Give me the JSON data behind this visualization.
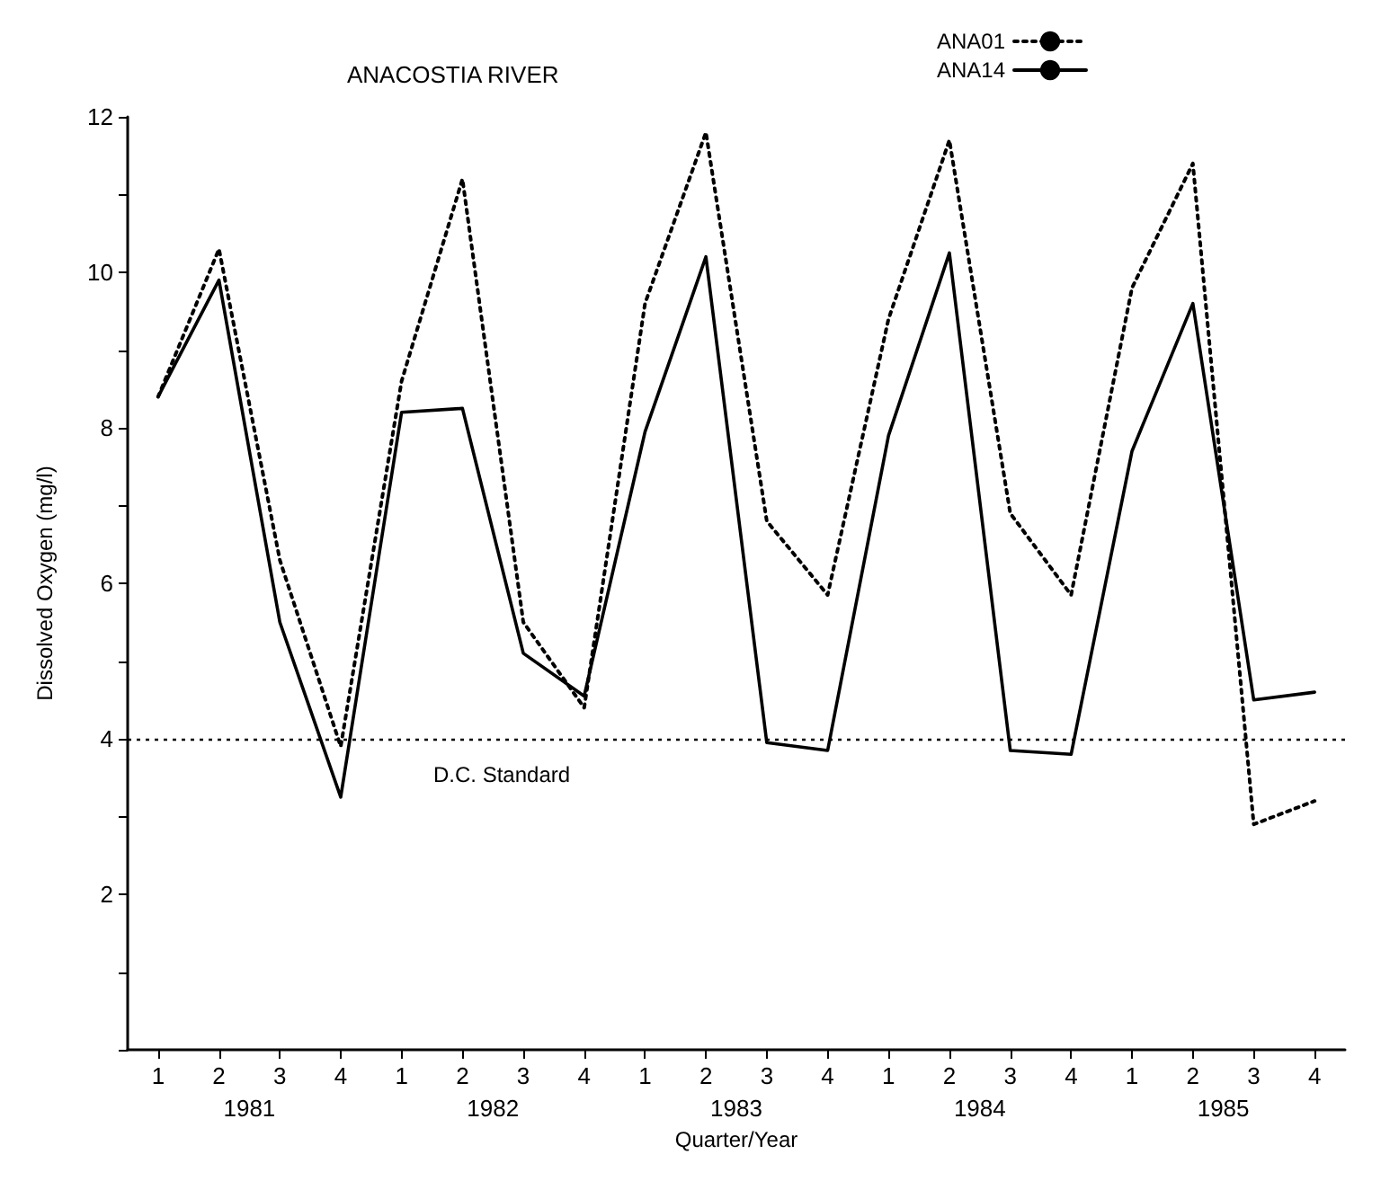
{
  "chart_data": {
    "type": "line",
    "title": "ANACOSTIA RIVER",
    "xlabel": "Quarter/Year",
    "ylabel": "Dissolved Oxygen (mg/l)",
    "categories": [
      "1",
      "2",
      "3",
      "4",
      "1",
      "2",
      "3",
      "4",
      "1",
      "2",
      "3",
      "4",
      "1",
      "2",
      "3",
      "4",
      "1",
      "2",
      "3",
      "4"
    ],
    "annotations": [
      "1981",
      "1982",
      "1983",
      "1984",
      "1985"
    ],
    "series": [
      {
        "name": "ANA01",
        "color": "#000000",
        "line_style": "dotted",
        "values": [
          8.4,
          10.3,
          6.3,
          3.9,
          8.6,
          11.2,
          5.5,
          4.4,
          9.6,
          11.8,
          6.8,
          5.85,
          9.4,
          11.7,
          6.9,
          5.85,
          9.8,
          11.4,
          2.9,
          3.2
        ]
      },
      {
        "name": "ANA14",
        "color": "#000000",
        "line_style": "solid",
        "values": [
          8.4,
          9.9,
          5.5,
          3.25,
          8.2,
          8.25,
          5.1,
          4.55,
          7.95,
          10.2,
          3.95,
          3.85,
          7.9,
          10.25,
          3.85,
          3.8,
          7.7,
          9.6,
          4.5,
          4.6
        ]
      }
    ],
    "ylim": [
      0,
      12
    ],
    "yticks": [
      {
        "value": 0,
        "label": null
      },
      {
        "value": 1,
        "label": null
      },
      2,
      {
        "value": 3,
        "label": null
      },
      4,
      {
        "value": 5,
        "label": null
      },
      6,
      {
        "value": 7,
        "label": null
      },
      8,
      {
        "value": 9,
        "label": null
      },
      10,
      {
        "value": 11,
        "label": null
      },
      12
    ],
    "ref_lines": [
      {
        "axis": "y",
        "value": 4,
        "label": "D.C. Standard",
        "color": "#000000",
        "line_style": "dotted"
      }
    ],
    "grid": false,
    "legend": "top right",
    "marker": "none"
  }
}
